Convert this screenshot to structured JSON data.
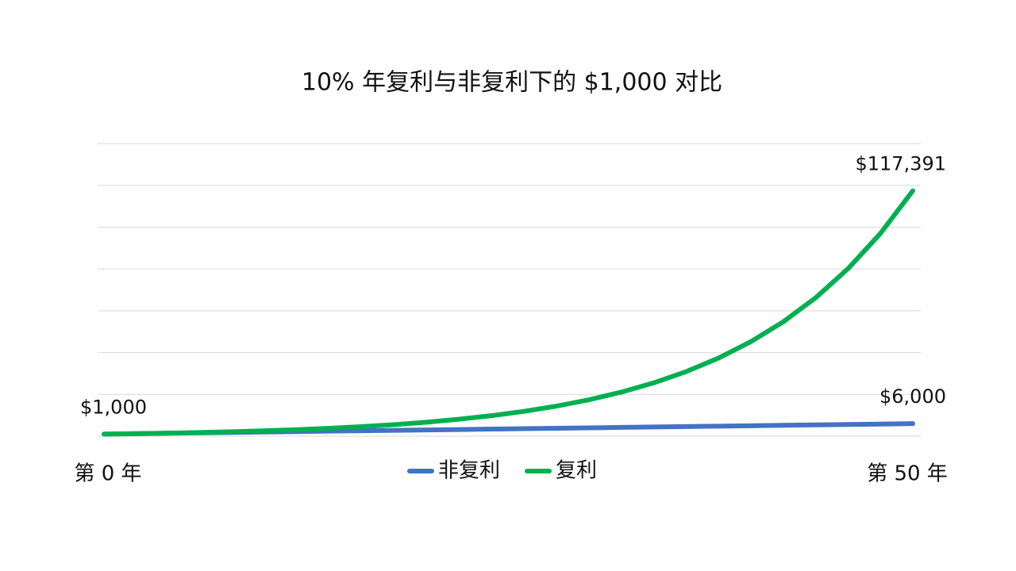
{
  "chart_data": {
    "type": "line",
    "title": "10% 年复利与非复利下的 $1,000 对比",
    "x": [
      0,
      2,
      4,
      6,
      8,
      10,
      12,
      14,
      16,
      18,
      20,
      22,
      24,
      26,
      28,
      30,
      32,
      34,
      36,
      38,
      40,
      42,
      44,
      46,
      48,
      50
    ],
    "xlim": [
      0,
      50
    ],
    "xticks": [
      {
        "value": 0,
        "label": "第 0 年"
      },
      {
        "value": 50,
        "label": "第 50 年"
      }
    ],
    "ylim": [
      0,
      140000
    ],
    "yticks": [
      0,
      20000,
      40000,
      60000,
      80000,
      100000,
      120000,
      140000
    ],
    "show_ytick_labels": false,
    "grid": true,
    "legend": "bottom",
    "series": [
      {
        "name": "非复利",
        "color": "#4472c4",
        "values": [
          1000,
          1200,
          1400,
          1600,
          1800,
          2000,
          2200,
          2400,
          2600,
          2800,
          3000,
          3200,
          3400,
          3600,
          3800,
          4000,
          4200,
          4400,
          4600,
          4800,
          5000,
          5200,
          5400,
          5600,
          5800,
          6000
        ],
        "value_labels": [
          "$1,000",
          null,
          null,
          null,
          null,
          null,
          null,
          null,
          null,
          null,
          null,
          null,
          null,
          null,
          null,
          null,
          null,
          null,
          null,
          null,
          null,
          null,
          null,
          null,
          null,
          "$6,000"
        ]
      },
      {
        "name": "复利",
        "color": "#00b050",
        "values": [
          1000,
          1210,
          1464,
          1772,
          2144,
          2594,
          3138,
          3798,
          4595,
          5560,
          6728,
          8140,
          9850,
          11918,
          14421,
          17449,
          21114,
          25548,
          30913,
          37404,
          45259,
          54764,
          66264,
          80180,
          97017,
          117391
        ],
        "value_labels": [
          null,
          null,
          null,
          null,
          null,
          null,
          null,
          null,
          null,
          null,
          null,
          null,
          null,
          null,
          null,
          null,
          null,
          null,
          null,
          null,
          null,
          null,
          null,
          null,
          null,
          "$117,391"
        ]
      }
    ]
  }
}
